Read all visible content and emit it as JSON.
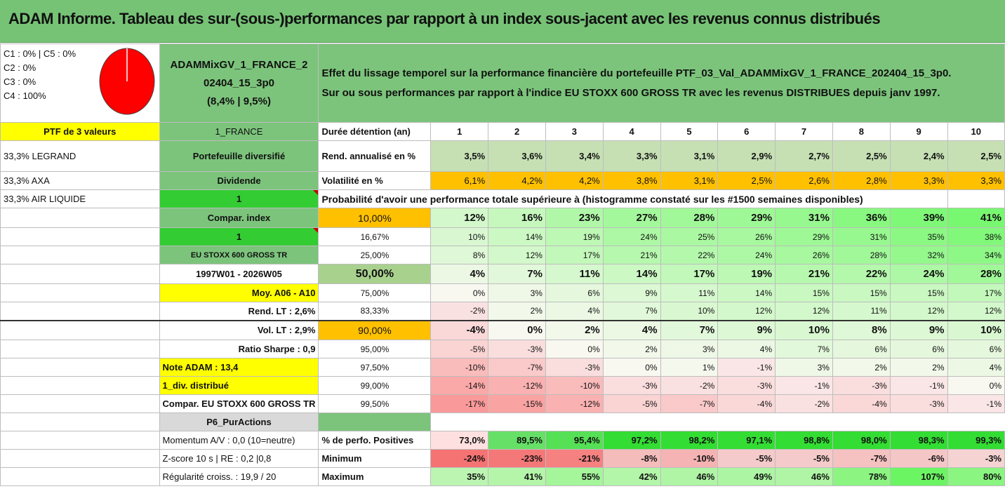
{
  "title": "ADAM Informe. Tableau des sur-(sous-)performances par rapport à un index sous-jacent avec les revenus connus distribués",
  "legend": [
    "C1 : 0% | C5 : 0%",
    "C2 : 0%",
    "C3 : 0%",
    "C4 : 100%"
  ],
  "pie": {
    "values": [
      0,
      0,
      0,
      100,
      0
    ],
    "colors": [
      "#ffffff",
      "#ffffff",
      "#ffffff",
      "#ff0000",
      "#ffffff"
    ]
  },
  "portfolio": {
    "name_l1": "ADAMMixGV_1_FRANCE_2",
    "name_l2": "02404_15_3p0",
    "name_l3": "(8,4% | 9,5%)"
  },
  "description": {
    "line1": "Effet du lissage temporel sur la performance financière du portefeuille PTF_03_Val_ADAMMixGV_1_FRANCE_202404_15_3p0.",
    "line2": "Sur ou sous performances par rapport à l'indice EU STOXX 600 GROSS TR avec les revenus DISTRIBUES depuis janv 1997."
  },
  "left_col": [
    "PTF de 3 valeurs",
    "33,3% LEGRAND",
    "33,3% AXA",
    "33,3% AIR LIQUIDE"
  ],
  "mid_col": [
    "1_FRANCE",
    "Portefeuille diversifié",
    "Dividende",
    "1",
    "Compar. index",
    "1",
    "EU STOXX 600 GROSS TR",
    "1997W01 - 2026W05",
    "Moy. A06 - A10",
    "Rend. LT : 2,6%",
    "Vol. LT : 2,9%",
    "Ratio Sharpe : 0,9",
    "Note ADAM : 13,4",
    "1_div. distribué",
    "Compar. EU STOXX 600 GROSS TR",
    "P6_PurActions",
    "Momentum A/V : 0,0 (10=neutre)",
    "Z-score 10 s | RE : 0,2 |0,8",
    "Régularité croiss. : 19,9 / 20"
  ],
  "header": {
    "label": "Durée détention (an)",
    "years": [
      "1",
      "2",
      "3",
      "4",
      "5",
      "6",
      "7",
      "8",
      "9",
      "10"
    ]
  },
  "rend": {
    "label": "Rend. annualisé en %",
    "values": [
      "3,5%",
      "3,6%",
      "3,4%",
      "3,3%",
      "3,1%",
      "2,9%",
      "2,7%",
      "2,5%",
      "2,4%",
      "2,5%"
    ]
  },
  "vol": {
    "label": "Volatilité en %",
    "values": [
      "6,1%",
      "4,2%",
      "4,2%",
      "3,8%",
      "3,1%",
      "2,5%",
      "2,6%",
      "2,8%",
      "3,3%",
      "3,3%"
    ]
  },
  "proba_title": "Probabilité d'avoir une performance totale supérieure à (histogramme constaté sur les #1500 semaines disponibles)",
  "thresholds": [
    {
      "t": "10,00%",
      "v": [
        "12%",
        "16%",
        "23%",
        "27%",
        "28%",
        "29%",
        "31%",
        "36%",
        "39%",
        "41%"
      ]
    },
    {
      "t": "16,67%",
      "v": [
        "10%",
        "14%",
        "19%",
        "24%",
        "25%",
        "26%",
        "29%",
        "31%",
        "35%",
        "38%"
      ]
    },
    {
      "t": "25,00%",
      "v": [
        "8%",
        "12%",
        "17%",
        "21%",
        "22%",
        "24%",
        "26%",
        "28%",
        "32%",
        "34%"
      ]
    },
    {
      "t": "50,00%",
      "v": [
        "4%",
        "7%",
        "11%",
        "14%",
        "17%",
        "19%",
        "21%",
        "22%",
        "24%",
        "28%"
      ]
    },
    {
      "t": "75,00%",
      "v": [
        "0%",
        "3%",
        "6%",
        "9%",
        "11%",
        "14%",
        "15%",
        "15%",
        "15%",
        "17%"
      ]
    },
    {
      "t": "83,33%",
      "v": [
        "-2%",
        "2%",
        "4%",
        "7%",
        "10%",
        "12%",
        "12%",
        "11%",
        "12%",
        "12%"
      ]
    },
    {
      "t": "90,00%",
      "v": [
        "-4%",
        "0%",
        "2%",
        "4%",
        "7%",
        "9%",
        "10%",
        "8%",
        "9%",
        "10%"
      ]
    },
    {
      "t": "95,00%",
      "v": [
        "-5%",
        "-3%",
        "0%",
        "2%",
        "3%",
        "4%",
        "7%",
        "6%",
        "6%",
        "6%"
      ]
    },
    {
      "t": "97,50%",
      "v": [
        "-10%",
        "-7%",
        "-3%",
        "0%",
        "1%",
        "-1%",
        "3%",
        "2%",
        "2%",
        "4%"
      ]
    },
    {
      "t": "99,00%",
      "v": [
        "-14%",
        "-12%",
        "-10%",
        "-3%",
        "-2%",
        "-3%",
        "-1%",
        "-3%",
        "-1%",
        "0%"
      ]
    },
    {
      "t": "99,50%",
      "v": [
        "-17%",
        "-15%",
        "-12%",
        "-5%",
        "-7%",
        "-4%",
        "-2%",
        "-4%",
        "-3%",
        "-1%"
      ]
    }
  ],
  "positives": {
    "label": "% de perfo. Positives",
    "values": [
      "73,0%",
      "89,5%",
      "95,4%",
      "97,2%",
      "98,2%",
      "97,1%",
      "98,8%",
      "98,0%",
      "98,3%",
      "99,3%"
    ]
  },
  "minimum": {
    "label": "Minimum",
    "values": [
      "-24%",
      "-23%",
      "-21%",
      "-8%",
      "-10%",
      "-5%",
      "-5%",
      "-7%",
      "-6%",
      "-3%"
    ]
  },
  "maximum": {
    "label": "Maximum",
    "values": [
      "35%",
      "41%",
      "55%",
      "42%",
      "46%",
      "49%",
      "46%",
      "78%",
      "107%",
      "80%"
    ]
  },
  "colors": {
    "title_bg": "#76c376",
    "green": "#7cc47c",
    "yellow": "#ffff00",
    "orange": "#ffc000",
    "red_text": "#e02020"
  }
}
